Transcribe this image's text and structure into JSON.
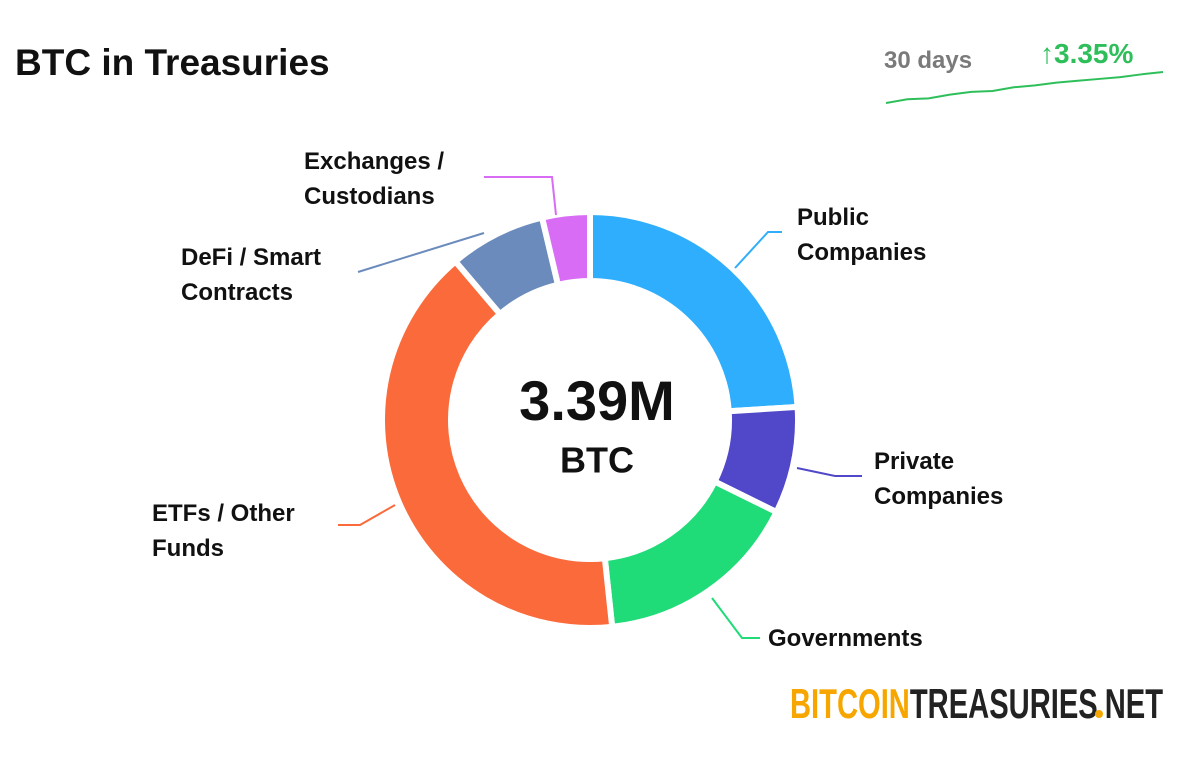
{
  "chart_data": {
    "type": "donut",
    "title": "BTC in Treasuries",
    "center_value": "3.39M",
    "center_unit": "BTC",
    "categories": [
      "Public Companies",
      "Private Companies",
      "Governments",
      "ETFs / Other Funds",
      "DeFi / Smart Contracts",
      "Exchanges / Custodians"
    ],
    "values": [
      24,
      8.3,
      16,
      40.5,
      7.5,
      3.7
    ],
    "colors": [
      "#2eaefc",
      "#5048c8",
      "#1fdc78",
      "#fb6a3a",
      "#6b8bbd",
      "#d86cf5"
    ],
    "trend": {
      "period": "30 days",
      "change": {
        "value": 3.35,
        "label": "↑3.35%"
      },
      "color": "#2fbf5a",
      "values": [
        0,
        0.4,
        0.5,
        0.9,
        1.2,
        1.3,
        1.7,
        1.9,
        2.2,
        2.4,
        2.6,
        2.8,
        3.1,
        3.35
      ]
    },
    "logo": [
      "BITCOIN",
      "TREASURIES",
      "NET"
    ]
  }
}
